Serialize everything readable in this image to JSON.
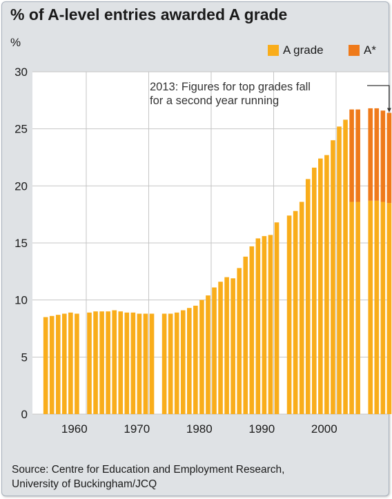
{
  "chart_data": {
    "type": "bar",
    "title": "% of A-level entries awarded A grade",
    "ylabel": "%",
    "xlabel": "",
    "ylim": [
      0,
      30
    ],
    "yticks": [
      0,
      5,
      10,
      15,
      20,
      25,
      30
    ],
    "xticks": [
      1960,
      1970,
      1980,
      1990,
      2000
    ],
    "grid": true,
    "legend_position": "top-right",
    "stacked": true,
    "x": [
      1958,
      1959,
      1960,
      1961,
      1962,
      1963,
      1965,
      1966,
      1967,
      1968,
      1969,
      1970,
      1971,
      1972,
      1973,
      1974,
      1975,
      1977,
      1978,
      1979,
      1980,
      1981,
      1982,
      1983,
      1984,
      1985,
      1986,
      1987,
      1988,
      1989,
      1990,
      1991,
      1992,
      1993,
      1994,
      1995,
      1997,
      1998,
      1999,
      2000,
      2001,
      2002,
      2003,
      2004,
      2005,
      2006,
      2007,
      2008,
      2010,
      2011,
      2012,
      2013
    ],
    "series": [
      {
        "name": "A grade",
        "color": "#f9ad1b",
        "values": [
          8.5,
          8.6,
          8.7,
          8.8,
          8.9,
          8.8,
          8.9,
          9.0,
          9.0,
          9.0,
          9.1,
          9.0,
          8.9,
          8.9,
          8.8,
          8.8,
          8.8,
          8.8,
          8.8,
          8.9,
          9.1,
          9.3,
          9.5,
          10.0,
          10.4,
          11.1,
          11.6,
          12.0,
          11.9,
          12.8,
          13.8,
          14.7,
          15.4,
          15.6,
          15.7,
          16.8,
          17.4,
          17.8,
          18.6,
          20.6,
          21.6,
          22.4,
          22.7,
          24.0,
          25.2,
          25.8,
          18.6,
          18.6,
          18.7,
          18.7,
          18.6,
          18.5
        ]
      },
      {
        "name": "A*",
        "color": "#ef7a1a",
        "values": [
          0,
          0,
          0,
          0,
          0,
          0,
          0,
          0,
          0,
          0,
          0,
          0,
          0,
          0,
          0,
          0,
          0,
          0,
          0,
          0,
          0,
          0,
          0,
          0,
          0,
          0,
          0,
          0,
          0,
          0,
          0,
          0,
          0,
          0,
          0,
          0,
          0,
          0,
          0,
          0,
          0,
          0,
          0,
          0,
          0,
          0,
          8.1,
          8.1,
          8.1,
          8.1,
          8.0,
          7.9
        ]
      }
    ],
    "annotation": {
      "lines": [
        "2013: Figures for top grades fall",
        "for a second year running"
      ],
      "x": 2013
    }
  },
  "source": {
    "line1": "Source: Centre for Education and Employment Research,",
    "line2": "University of Buckingham/JCQ"
  }
}
